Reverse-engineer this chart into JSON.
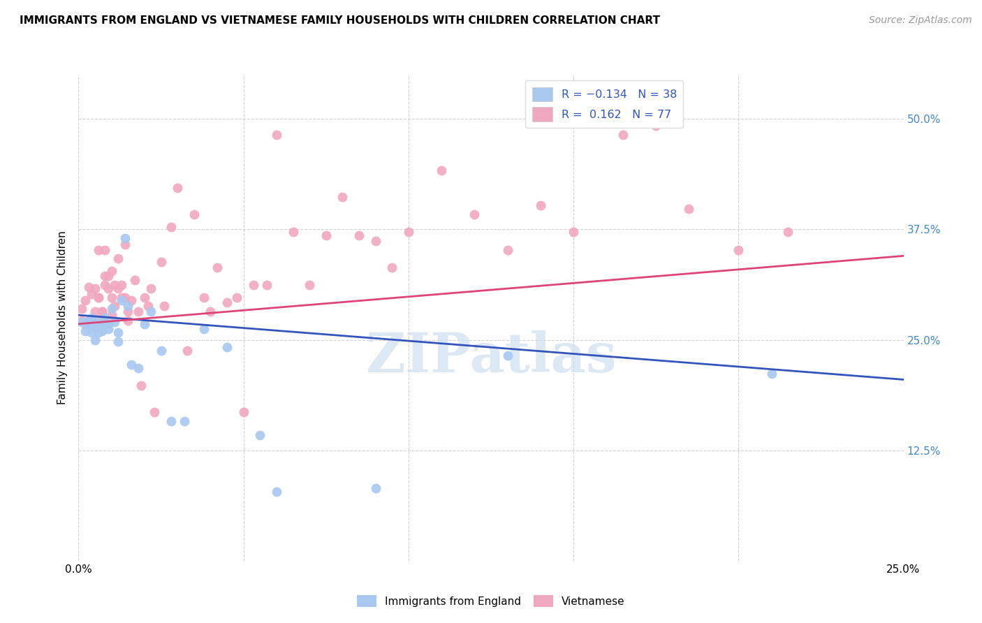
{
  "title": "IMMIGRANTS FROM ENGLAND VS VIETNAMESE FAMILY HOUSEHOLDS WITH CHILDREN CORRELATION CHART",
  "source": "Source: ZipAtlas.com",
  "ylabel": "Family Households with Children",
  "xlim": [
    0.0,
    0.25
  ],
  "ylim": [
    0.0,
    0.55
  ],
  "color_blue": "#a8c8f0",
  "color_pink": "#f0a8c0",
  "line_color_blue": "#3355bb",
  "line_color_pink": "#dd4477",
  "watermark": "ZIPatlas",
  "blue_x": [
    0.001,
    0.002,
    0.003,
    0.003,
    0.004,
    0.004,
    0.005,
    0.005,
    0.005,
    0.006,
    0.006,
    0.007,
    0.007,
    0.008,
    0.008,
    0.009,
    0.009,
    0.01,
    0.011,
    0.012,
    0.012,
    0.013,
    0.014,
    0.015,
    0.016,
    0.018,
    0.02,
    0.022,
    0.025,
    0.028,
    0.032,
    0.038,
    0.045,
    0.055,
    0.06,
    0.09,
    0.13,
    0.21
  ],
  "blue_y": [
    0.27,
    0.26,
    0.268,
    0.272,
    0.258,
    0.275,
    0.265,
    0.272,
    0.25,
    0.265,
    0.258,
    0.268,
    0.26,
    0.27,
    0.275,
    0.262,
    0.268,
    0.285,
    0.27,
    0.248,
    0.258,
    0.295,
    0.365,
    0.288,
    0.222,
    0.218,
    0.268,
    0.282,
    0.238,
    0.158,
    0.158,
    0.262,
    0.242,
    0.142,
    0.078,
    0.082,
    0.232,
    0.212
  ],
  "pink_x": [
    0.001,
    0.001,
    0.002,
    0.002,
    0.003,
    0.003,
    0.004,
    0.004,
    0.004,
    0.005,
    0.005,
    0.005,
    0.006,
    0.006,
    0.006,
    0.007,
    0.007,
    0.007,
    0.008,
    0.008,
    0.008,
    0.009,
    0.009,
    0.01,
    0.01,
    0.01,
    0.011,
    0.011,
    0.012,
    0.012,
    0.013,
    0.013,
    0.014,
    0.014,
    0.015,
    0.015,
    0.016,
    0.017,
    0.018,
    0.019,
    0.02,
    0.021,
    0.022,
    0.023,
    0.025,
    0.026,
    0.028,
    0.03,
    0.033,
    0.035,
    0.038,
    0.04,
    0.042,
    0.045,
    0.048,
    0.05,
    0.053,
    0.057,
    0.06,
    0.065,
    0.07,
    0.075,
    0.08,
    0.085,
    0.09,
    0.095,
    0.1,
    0.11,
    0.12,
    0.13,
    0.14,
    0.15,
    0.165,
    0.175,
    0.185,
    0.2,
    0.215
  ],
  "pink_y": [
    0.272,
    0.285,
    0.268,
    0.295,
    0.31,
    0.272,
    0.268,
    0.302,
    0.272,
    0.308,
    0.282,
    0.268,
    0.298,
    0.298,
    0.352,
    0.272,
    0.282,
    0.282,
    0.322,
    0.352,
    0.312,
    0.308,
    0.322,
    0.298,
    0.328,
    0.278,
    0.288,
    0.312,
    0.342,
    0.308,
    0.298,
    0.312,
    0.298,
    0.358,
    0.272,
    0.282,
    0.295,
    0.318,
    0.282,
    0.198,
    0.298,
    0.288,
    0.308,
    0.168,
    0.338,
    0.288,
    0.378,
    0.422,
    0.238,
    0.392,
    0.298,
    0.282,
    0.332,
    0.292,
    0.298,
    0.168,
    0.312,
    0.312,
    0.482,
    0.372,
    0.312,
    0.368,
    0.412,
    0.368,
    0.362,
    0.332,
    0.372,
    0.442,
    0.392,
    0.352,
    0.402,
    0.372,
    0.482,
    0.492,
    0.398,
    0.352,
    0.372
  ],
  "blue_trend_x": [
    0.0,
    0.25
  ],
  "blue_trend_y": [
    0.278,
    0.205
  ],
  "pink_trend_x": [
    0.0,
    0.25
  ],
  "pink_trend_y": [
    0.268,
    0.345
  ]
}
